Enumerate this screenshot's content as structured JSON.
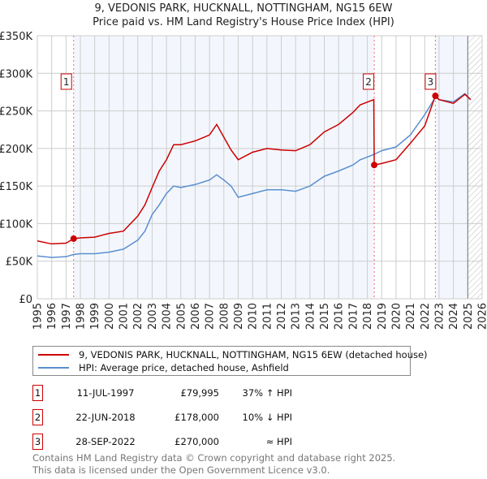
{
  "chart_data": {
    "type": "line",
    "title": "9, VEDONIS PARK, HUCKNALL, NOTTINGHAM, NG15 6EW",
    "subtitle": "Price paid vs. HM Land Registry's House Price Index (HPI)",
    "xlim": [
      1995,
      2026
    ],
    "ylim": [
      0,
      350000
    ],
    "yticks": [
      0,
      50000,
      100000,
      150000,
      200000,
      250000,
      300000,
      350000
    ],
    "ytick_labels": [
      "£0",
      "£50K",
      "£100K",
      "£150K",
      "£200K",
      "£250K",
      "£300K",
      "£350K"
    ],
    "xticks": [
      1995,
      1996,
      1997,
      1998,
      1999,
      2000,
      2001,
      2002,
      2003,
      2004,
      2005,
      2006,
      2007,
      2008,
      2009,
      2010,
      2011,
      2012,
      2013,
      2014,
      2015,
      2016,
      2017,
      2018,
      2019,
      2020,
      2021,
      2022,
      2023,
      2024,
      2025,
      2026
    ],
    "grid": true,
    "series": [
      {
        "name": "9, VEDONIS PARK, HUCKNALL, NOTTINGHAM, NG15 6EW (detached house)",
        "color": "#cc0000",
        "x": [
          1995,
          1996,
          1997,
          1997.53,
          1998,
          1999,
          2000,
          2001,
          2002,
          2002.5,
          2003,
          2003.5,
          2004,
          2004.5,
          2005,
          2006,
          2007,
          2007.5,
          2008,
          2008.5,
          2009,
          2010,
          2011,
          2012,
          2013,
          2014,
          2015,
          2016,
          2017,
          2017.5,
          2018.45,
          2018.48,
          2019,
          2020,
          2021,
          2022,
          2022.74,
          2023,
          2024,
          2024.8,
          2025.2
        ],
        "y": [
          77000,
          73000,
          74000,
          79995,
          81000,
          82000,
          87000,
          90000,
          110000,
          125000,
          148000,
          170000,
          185000,
          205000,
          205000,
          210000,
          218000,
          232000,
          215000,
          198000,
          185000,
          195000,
          200000,
          198000,
          197000,
          205000,
          222000,
          232000,
          248000,
          258000,
          265000,
          178000,
          180000,
          185000,
          207000,
          230000,
          270000,
          265000,
          260000,
          272000,
          265000
        ]
      },
      {
        "name": "HPI: Average price, detached house, Ashfield",
        "color": "#5b8fd0",
        "x": [
          1995,
          1996,
          1997,
          1997.53,
          1998,
          1999,
          2000,
          2001,
          2002,
          2002.5,
          2003,
          2003.5,
          2004,
          2004.5,
          2005,
          2006,
          2007,
          2007.5,
          2008,
          2008.5,
          2009,
          2010,
          2011,
          2012,
          2013,
          2014,
          2015,
          2016,
          2017,
          2017.5,
          2018.45,
          2019,
          2020,
          2021,
          2022,
          2022.74,
          2023,
          2024,
          2024.8,
          2025.2
        ],
        "y": [
          57000,
          55000,
          56000,
          59000,
          60000,
          60000,
          62000,
          66000,
          78000,
          90000,
          112000,
          125000,
          140000,
          150000,
          148000,
          152000,
          158000,
          165000,
          158000,
          150000,
          135000,
          140000,
          145000,
          145000,
          143000,
          150000,
          163000,
          170000,
          178000,
          185000,
          192000,
          197000,
          202000,
          218000,
          245000,
          268000,
          265000,
          262000,
          273000,
          265000
        ]
      }
    ],
    "sales": [
      {
        "num": "1",
        "x": 1997.53,
        "y": 79995,
        "date": "11-JUL-1997",
        "price": "£79,995",
        "hpi": "37% ↑ HPI"
      },
      {
        "num": "2",
        "x": 2018.48,
        "y": 178000,
        "date": "22-JUN-2018",
        "price": "£178,000",
        "hpi": "10% ↓ HPI"
      },
      {
        "num": "3",
        "x": 2022.74,
        "y": 270000,
        "date": "28-SEP-2022",
        "price": "£270,000",
        "hpi": "≈ HPI"
      }
    ],
    "forecast_start": 2025.0,
    "legend_position": "bottom"
  },
  "footer": [
    "Contains HM Land Registry data © Crown copyright and database right 2025.",
    "This data is licensed under the Open Government Licence v3.0."
  ]
}
